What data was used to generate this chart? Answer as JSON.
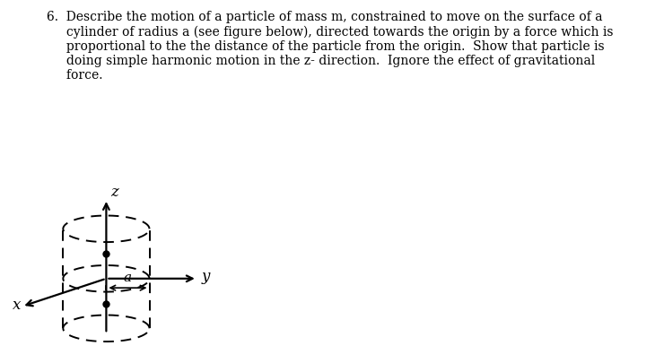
{
  "title_text": "6.  Describe the motion of a particle of mass m, constrained to move on the surface of a\n     cylinder of radius a (see figure below), directed towards the origin by a force which is\n     proportional to the the distance of the particle from the origin.  Show that particle is\n     doing simple harmonic motion in the z- direction.  Ignore the effect of gravitational\n     force.",
  "title_fontsize": 10.0,
  "bg_color": "#ffffff",
  "fig_width": 7.4,
  "fig_height": 4.05,
  "dpi": 100,
  "label_a": "a",
  "label_x": "x",
  "label_y": "y",
  "label_z": "z"
}
